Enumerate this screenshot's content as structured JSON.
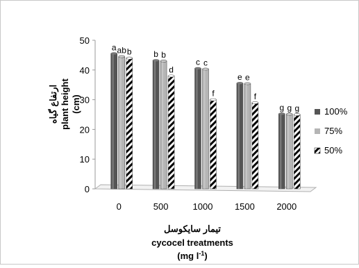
{
  "chart_data": {
    "type": "bar",
    "title": "",
    "categories": [
      "0",
      "500",
      "1000",
      "1500",
      "2000"
    ],
    "series": [
      {
        "name": "100%",
        "values": [
          45.5,
          43.2,
          40.5,
          35.5,
          25.2
        ],
        "letters": [
          "a",
          "b",
          "c",
          "e",
          "g"
        ],
        "color": "#555555"
      },
      {
        "name": "75%",
        "values": [
          44.5,
          43.0,
          40.3,
          35.4,
          25.1
        ],
        "letters": [
          "ab",
          "b",
          "c",
          "e",
          "g"
        ],
        "color": "#b5b5b5"
      },
      {
        "name": "50%",
        "values": [
          44.0,
          38.0,
          30.0,
          29.0,
          25.0
        ],
        "letters": [
          "b",
          "d",
          "f",
          "f",
          "g"
        ],
        "color": "#ffffff"
      }
    ],
    "ylim": [
      0,
      50
    ],
    "y_ticks": [
      0,
      10,
      20,
      30,
      40,
      50
    ],
    "ylabel_fa": "ارتفاع گیاه",
    "ylabel_en": "plant height",
    "ylabel_unit": "(cm)",
    "xlabel_fa": "تیمار سایکوسل",
    "xlabel_en": "cycocel treatments",
    "xlabel_unit_base": "(mg l",
    "xlabel_unit_sup": "-1",
    "xlabel_unit_end": ")",
    "legend_position": "right",
    "grid": false
  }
}
